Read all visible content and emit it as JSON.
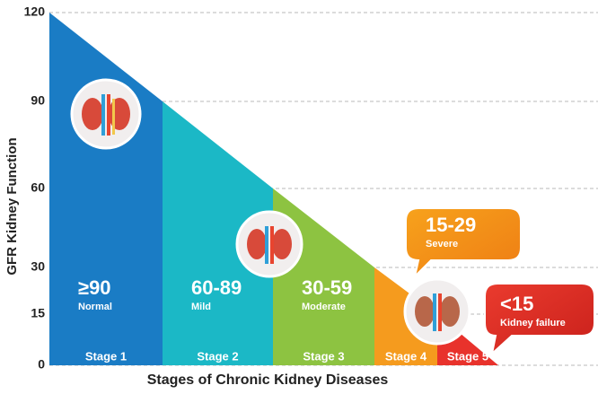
{
  "chart_data": {
    "type": "area",
    "ylabel": "GFR Kidney Function",
    "xlabel": "Stages of Chronic Kidney Diseases",
    "ylim": [
      0,
      120
    ],
    "yticks": [
      0,
      15,
      30,
      60,
      90,
      120
    ],
    "grid": true,
    "stages": [
      {
        "name": "Stage 1",
        "color": "#1a7cc5",
        "range": [
          120,
          90
        ],
        "label": "≥90",
        "sublabel": "Normal"
      },
      {
        "name": "Stage 2",
        "color": "#1bb8c6",
        "range": [
          90,
          60
        ],
        "label": "60-89",
        "sublabel": "Mild"
      },
      {
        "name": "Stage 3",
        "color": "#8dc341",
        "range": [
          60,
          30
        ],
        "label": "30-59",
        "sublabel": "Moderate"
      },
      {
        "name": "Stage 4",
        "color": "#f59b1e",
        "range": [
          30,
          15
        ],
        "label": "15-29",
        "sublabel": "Severe"
      },
      {
        "name": "Stage 5",
        "color": "#e8322c",
        "range": [
          15,
          0
        ],
        "label": "<15",
        "sublabel": "Kidney failure"
      }
    ]
  }
}
